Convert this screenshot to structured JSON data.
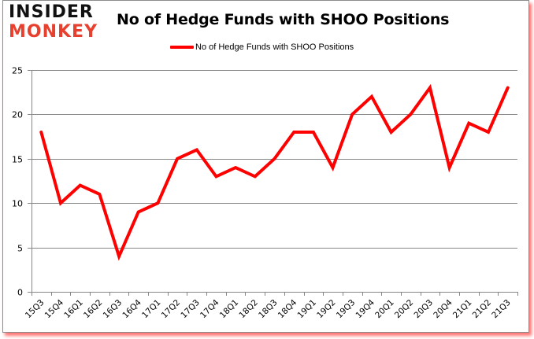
{
  "logo": {
    "line1": "INSIDER",
    "line2": "MONKEY"
  },
  "header": {
    "title": "No of Hedge Funds with SHOO Positions"
  },
  "legend": {
    "label": "No of Hedge Funds with SHOO Positions",
    "color": "#ff0000"
  },
  "chart_data": {
    "type": "line",
    "title": "No of Hedge Funds with SHOO Positions",
    "xlabel": "",
    "ylabel": "",
    "ylim": [
      0,
      25
    ],
    "yticks": [
      0,
      5,
      10,
      15,
      20,
      25
    ],
    "grid": true,
    "legend_position": "top",
    "categories": [
      "15Q3",
      "15Q4",
      "16Q1",
      "16Q2",
      "16Q3",
      "16Q4",
      "17Q1",
      "17Q2",
      "17Q3",
      "17Q4",
      "18Q1",
      "18Q2",
      "18Q3",
      "18Q4",
      "19Q1",
      "19Q2",
      "19Q3",
      "19Q4",
      "20Q1",
      "20Q2",
      "20Q3",
      "20Q4",
      "21Q1",
      "21Q2",
      "21Q3"
    ],
    "series": [
      {
        "name": "No of Hedge Funds with SHOO Positions",
        "color": "#ff0000",
        "values": [
          18,
          10,
          12,
          11,
          4,
          9,
          10,
          15,
          16,
          13,
          14,
          13,
          15,
          18,
          18,
          14,
          20,
          22,
          18,
          20,
          23,
          14,
          19,
          18,
          23
        ]
      }
    ]
  }
}
